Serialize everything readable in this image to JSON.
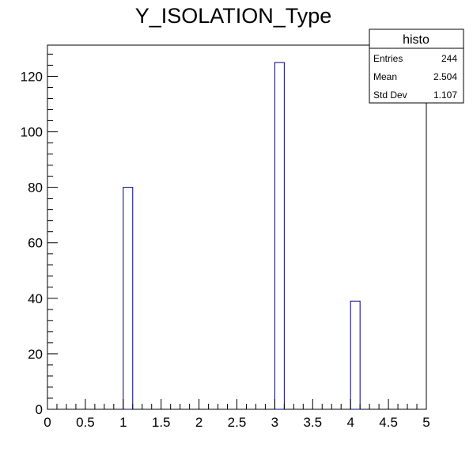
{
  "chart_data": {
    "type": "bar",
    "title": "Y_ISOLATION_Type",
    "bin_edges_step": 0.125,
    "x_range": [
      0,
      5
    ],
    "y_range": [
      0,
      131.25
    ],
    "bins": [
      {
        "x_low": 1.0,
        "x_high": 1.125,
        "count": 80
      },
      {
        "x_low": 3.0,
        "x_high": 3.125,
        "count": 125
      },
      {
        "x_low": 4.0,
        "x_high": 4.125,
        "count": 39
      }
    ],
    "x_ticks": [
      "0",
      "0.5",
      "1",
      "1.5",
      "2",
      "2.5",
      "3",
      "3.5",
      "4",
      "4.5",
      "5"
    ],
    "y_ticks": [
      "0",
      "20",
      "40",
      "60",
      "80",
      "100",
      "120"
    ],
    "bar_stroke": "#000080",
    "bar_fill": "#ffffff",
    "grid": false,
    "legend": "none"
  },
  "stats_box": {
    "title": "histo",
    "rows": [
      {
        "label": "Entries",
        "value": "244"
      },
      {
        "label": "Mean",
        "value": "2.504"
      },
      {
        "label": "Std Dev",
        "value": "1.107"
      }
    ]
  }
}
